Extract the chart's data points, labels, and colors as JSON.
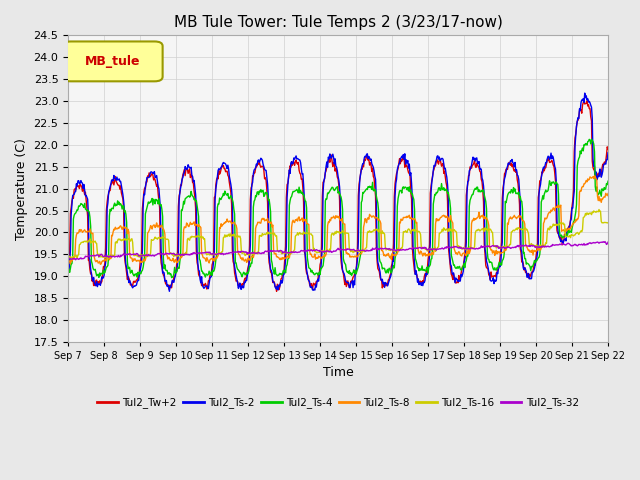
{
  "title": "MB Tule Tower: Tule Temps 2 (3/23/17-now)",
  "xlabel": "Time",
  "ylabel": "Temperature (C)",
  "ylim": [
    17.5,
    24.5
  ],
  "yticks": [
    17.5,
    18.0,
    18.5,
    19.0,
    19.5,
    20.0,
    20.5,
    21.0,
    21.5,
    22.0,
    22.5,
    23.0,
    23.5,
    24.0,
    24.5
  ],
  "x_labels": [
    "Sep 7",
    "Sep 8",
    "Sep 9",
    "Sep 10",
    "Sep 11",
    "Sep 12",
    "Sep 13",
    "Sep 14",
    "Sep 15",
    "Sep 16",
    "Sep 17",
    "Sep 18",
    "Sep 19",
    "Sep 20",
    "Sep 21",
    "Sep 22"
  ],
  "series": {
    "Tul2_Tw+2": {
      "color": "#dd0000",
      "lw": 1.0
    },
    "Tul2_Ts-2": {
      "color": "#0000ee",
      "lw": 1.0
    },
    "Tul2_Ts-4": {
      "color": "#00cc00",
      "lw": 1.0
    },
    "Tul2_Ts-8": {
      "color": "#ff8800",
      "lw": 1.0
    },
    "Tul2_Ts-16": {
      "color": "#cccc00",
      "lw": 1.0
    },
    "Tul2_Ts-32": {
      "color": "#aa00cc",
      "lw": 1.0
    }
  },
  "legend_box_facecolor": "#ffff99",
  "legend_box_edgecolor": "#999900",
  "legend_label": "MB_tule",
  "legend_label_color": "#cc0000",
  "background_color": "#e8e8e8",
  "plot_bg_color": "#f5f5f5",
  "grid_color": "#d0d0d0"
}
